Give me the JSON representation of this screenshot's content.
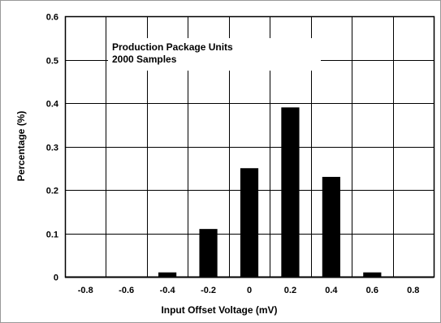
{
  "chart_data": {
    "type": "bar",
    "title": "",
    "xlabel": "Input Offset Voltage (mV)",
    "ylabel": "Percentage (%)",
    "annotations": [
      "Production Package Units",
      "2000 Samples"
    ],
    "categories": [
      "-0.8",
      "-0.6",
      "-0.4",
      "-0.2",
      "0",
      "0.2",
      "0.4",
      "0.6",
      "0.8"
    ],
    "values": [
      0,
      0,
      0.01,
      0.11,
      0.25,
      0.39,
      0.23,
      0.01,
      0
    ],
    "ylim": [
      0,
      0.6
    ],
    "yticks": [
      "0",
      "0.1",
      "0.2",
      "0.3",
      "0.4",
      "0.5",
      "0.6"
    ],
    "ytick_values": [
      0,
      0.1,
      0.2,
      0.3,
      0.4,
      0.5,
      0.6
    ],
    "grid": true,
    "bar_color": "#000000",
    "grid_color": "#000000"
  }
}
